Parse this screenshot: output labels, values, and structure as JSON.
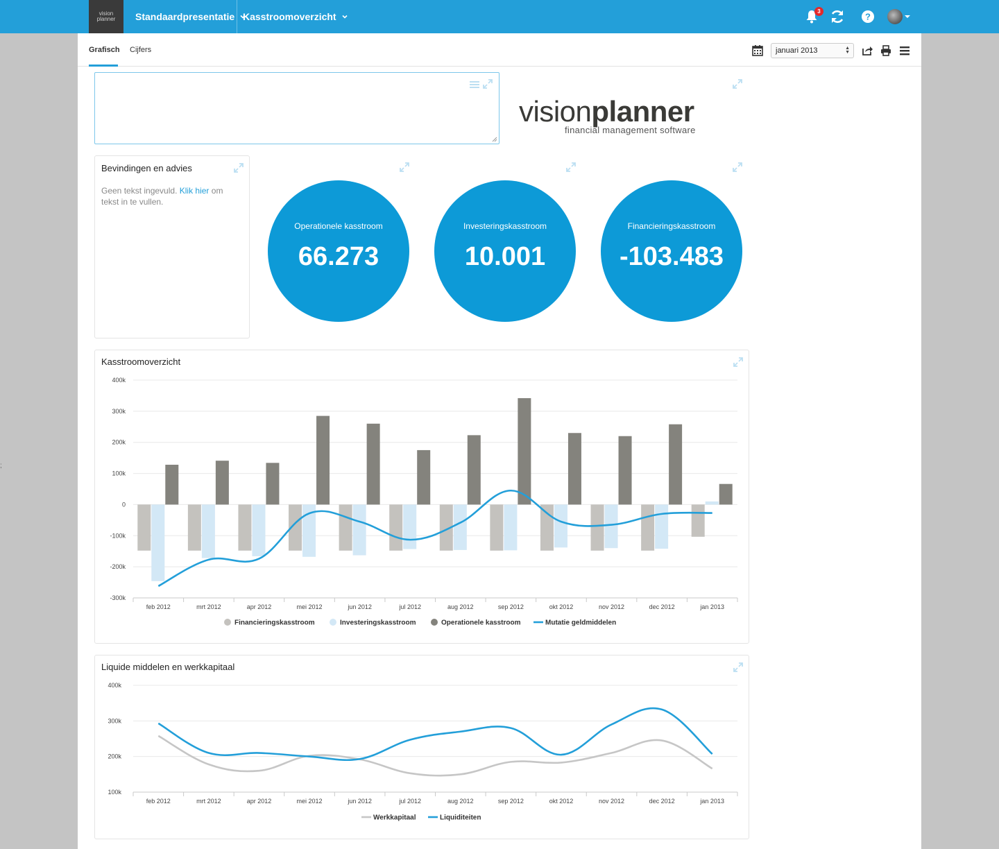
{
  "brand": {
    "line1": "vision",
    "line2": "planner"
  },
  "nav": {
    "menu1": "Standaardpresentatie",
    "menu2": "Kasstroomoverzicht",
    "notifications": "3"
  },
  "subnav": {
    "tab_active": "Grafisch",
    "tab_other": "Cijfers",
    "period": "januari 2013"
  },
  "logo": {
    "word_light": "vision",
    "word_bold": "planner",
    "tagline": "financial management software"
  },
  "advies": {
    "title": "Bevindingen en advies",
    "text_before": "Geen tekst ingevuld.",
    "link": "Klik hier",
    "text_after": "om tekst in te vullen."
  },
  "kpis": [
    {
      "label": "Operationele kasstroom",
      "value": "66.273"
    },
    {
      "label": "Investeringskasstroom",
      "value": "10.001"
    },
    {
      "label": "Financieringskasstroom",
      "value": "-103.483"
    }
  ],
  "colors": {
    "accent": "#239fd9",
    "kpi": "#0d9ad7",
    "financiering": "#c4c2be",
    "investering": "#d3e8f6",
    "operationeel": "#84837d",
    "mutatie": "#239fd9",
    "werkkapitaal": "#c6c6c6",
    "liquiditeiten": "#239fd9"
  },
  "side_mark": ";",
  "chart_data": [
    {
      "type": "bar",
      "title": "Kasstroomoverzicht",
      "categories": [
        "feb 2012",
        "mrt 2012",
        "apr 2012",
        "mei 2012",
        "jun 2012",
        "jul 2012",
        "aug 2012",
        "sep 2012",
        "okt 2012",
        "nov 2012",
        "dec 2012",
        "jan 2013"
      ],
      "yticks": [
        "400k",
        "300k",
        "200k",
        "100k",
        "0",
        "-100k",
        "-200k",
        "-300k"
      ],
      "ylim": [
        -300000,
        400000
      ],
      "series": [
        {
          "name": "Financieringskasstroom",
          "kind": "bar",
          "values": [
            -148000,
            -148000,
            -148000,
            -148000,
            -148000,
            -148000,
            -148000,
            -148000,
            -148000,
            -148000,
            -148000,
            -103483
          ]
        },
        {
          "name": "Investeringskasstroom",
          "kind": "bar",
          "values": [
            -246000,
            -172000,
            -166000,
            -168000,
            -163000,
            -143000,
            -146000,
            -147000,
            -138000,
            -140000,
            -142000,
            10001
          ]
        },
        {
          "name": "Operationele kasstroom",
          "kind": "bar",
          "values": [
            128000,
            141000,
            134000,
            285000,
            260000,
            175000,
            223000,
            342000,
            230000,
            220000,
            258000,
            66273
          ]
        },
        {
          "name": "Mutatie geldmiddelen",
          "kind": "line",
          "values": [
            -262000,
            -177000,
            -174000,
            -28000,
            -55000,
            -113000,
            -58000,
            45000,
            -55000,
            -65000,
            -30000,
            -27000
          ]
        }
      ],
      "legend": "bottom"
    },
    {
      "type": "line",
      "title": "Liquide middelen en werkkapitaal",
      "categories": [
        "feb 2012",
        "mrt 2012",
        "apr 2012",
        "mei 2012",
        "jun 2012",
        "jul 2012",
        "aug 2012",
        "sep 2012",
        "okt 2012",
        "nov 2012",
        "dec 2012",
        "jan 2013"
      ],
      "yticks": [
        "400k",
        "300k",
        "200k",
        "100k"
      ],
      "ylim": [
        100000,
        400000
      ],
      "series": [
        {
          "name": "Werkkapitaal",
          "values": [
            258000,
            178000,
            160000,
            202000,
            192000,
            153000,
            150000,
            185000,
            183000,
            210000,
            245000,
            166000
          ]
        },
        {
          "name": "Liquiditeiten",
          "values": [
            293000,
            210000,
            210000,
            200000,
            193000,
            247000,
            270000,
            280000,
            205000,
            290000,
            332000,
            207000
          ]
        }
      ],
      "legend": "bottom"
    }
  ]
}
